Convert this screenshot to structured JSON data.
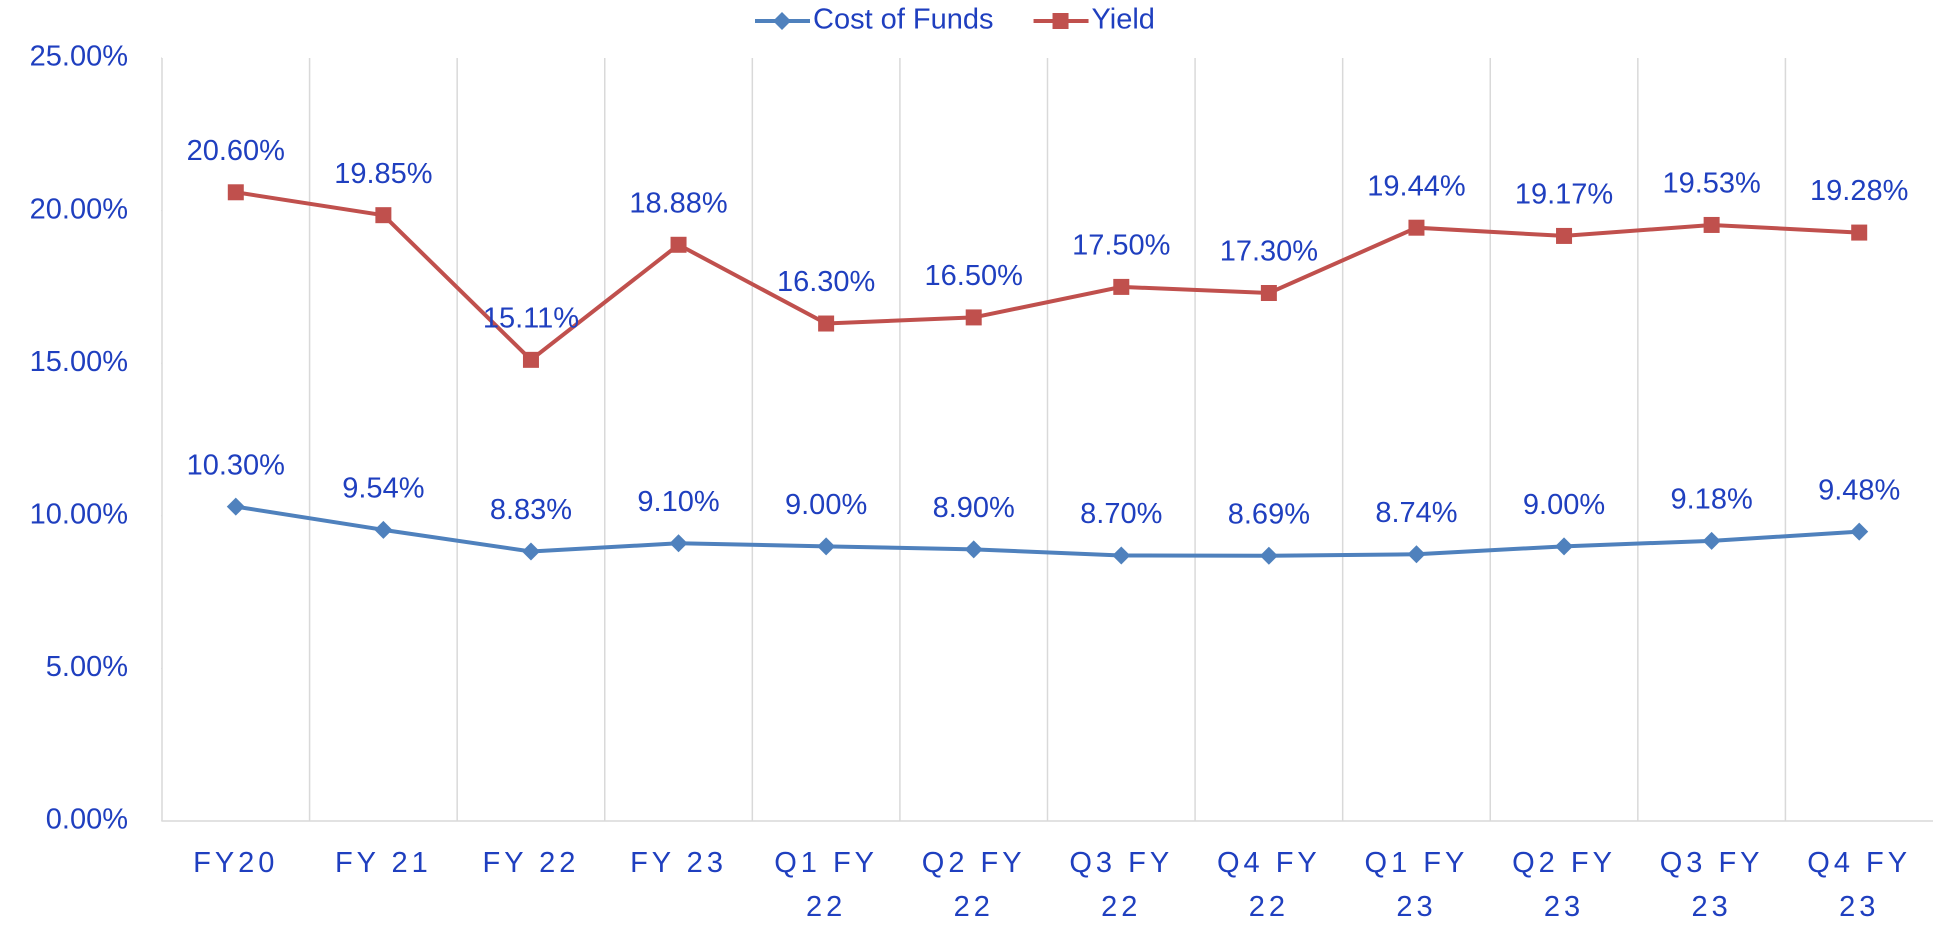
{
  "chart_data": {
    "type": "line",
    "categories": [
      "FY20",
      "FY 21",
      "FY 22",
      "FY 23",
      "Q1 FY 22",
      "Q2 FY 22",
      "Q3 FY 22",
      "Q4 FY 22",
      "Q1 FY 23",
      "Q2 FY 23",
      "Q3 FY 23",
      "Q4 FY 23"
    ],
    "series": [
      {
        "name": "Cost of Funds",
        "color": "#4f81bd",
        "marker": "diamond",
        "values": [
          10.3,
          9.54,
          8.83,
          9.1,
          9.0,
          8.9,
          8.7,
          8.69,
          8.74,
          9.0,
          9.18,
          9.48
        ],
        "value_labels": [
          "10.30%",
          "9.54%",
          "8.83%",
          "9.10%",
          "9.00%",
          "8.90%",
          "8.70%",
          "8.69%",
          "8.74%",
          "9.00%",
          "9.18%",
          "9.48%"
        ]
      },
      {
        "name": "Yield",
        "color": "#c0504d",
        "marker": "square",
        "values": [
          20.6,
          19.85,
          15.11,
          18.88,
          16.3,
          16.5,
          17.5,
          17.3,
          19.44,
          19.17,
          19.53,
          19.28
        ],
        "value_labels": [
          "20.60%",
          "19.85%",
          "15.11%",
          "18.88%",
          "16.30%",
          "16.50%",
          "17.50%",
          "17.30%",
          "19.44%",
          "19.17%",
          "19.53%",
          "19.28%"
        ]
      }
    ],
    "ylim": [
      0,
      25
    ],
    "yticks": [
      {
        "value": 0,
        "label": "0.00%"
      },
      {
        "value": 5,
        "label": "5.00%"
      },
      {
        "value": 10,
        "label": "10.00%"
      },
      {
        "value": 15,
        "label": "15.00%"
      },
      {
        "value": 20,
        "label": "20.00%"
      },
      {
        "value": 25,
        "label": "25.00%"
      }
    ],
    "legend": "top"
  }
}
